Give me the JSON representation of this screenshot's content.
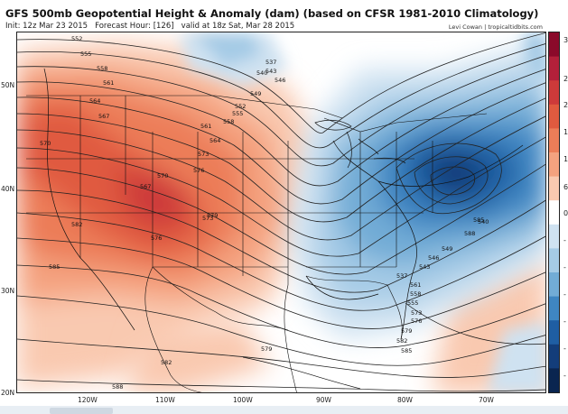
{
  "header": {
    "title": "GFS 500mb Geopotential Height & Anomaly (dam) (based on CFSR 1981-2010 Climatology)",
    "init": "Init: 12z Mar 23 2015",
    "forecast_hour": "Forecast Hour: [126]",
    "valid": "valid at 18z Sat, Mar 28 2015",
    "credit": "Levi Cowan | tropicaltidbits.com"
  },
  "axes": {
    "lat_labels": [
      "50N",
      "40N",
      "30N",
      "20N"
    ],
    "lon_labels": [
      "120W",
      "110W",
      "100W",
      "90W",
      "80W",
      "70W"
    ]
  },
  "contour_labels": [
    "552",
    "555",
    "558",
    "561",
    "564",
    "567",
    "570",
    "573",
    "576",
    "579",
    "582",
    "585",
    "588",
    "537",
    "540",
    "543",
    "546",
    "549",
    "552",
    "555",
    "558",
    "561",
    "564",
    "567",
    "570",
    "573",
    "576",
    "579",
    "582",
    "585",
    "588",
    "549",
    "546",
    "543",
    "540",
    "537",
    "561",
    "558",
    "555",
    "573",
    "576",
    "579",
    "582",
    "585"
  ],
  "colorbar": {
    "labels": [
      "3",
      "2",
      "2",
      "1",
      "1",
      "6",
      "0",
      "-",
      "-",
      "-",
      "-",
      "-",
      "-"
    ],
    "colors": [
      "#8b0a2a",
      "#b3203a",
      "#cd3a3a",
      "#e05a3f",
      "#ec7d58",
      "#f4a27f",
      "#f9c9b0",
      "#ffffff",
      "#cfe2f1",
      "#a5cbe6",
      "#72acd6",
      "#3f86c2",
      "#1f5ea3",
      "#133d7a",
      "#0a2550"
    ]
  }
}
